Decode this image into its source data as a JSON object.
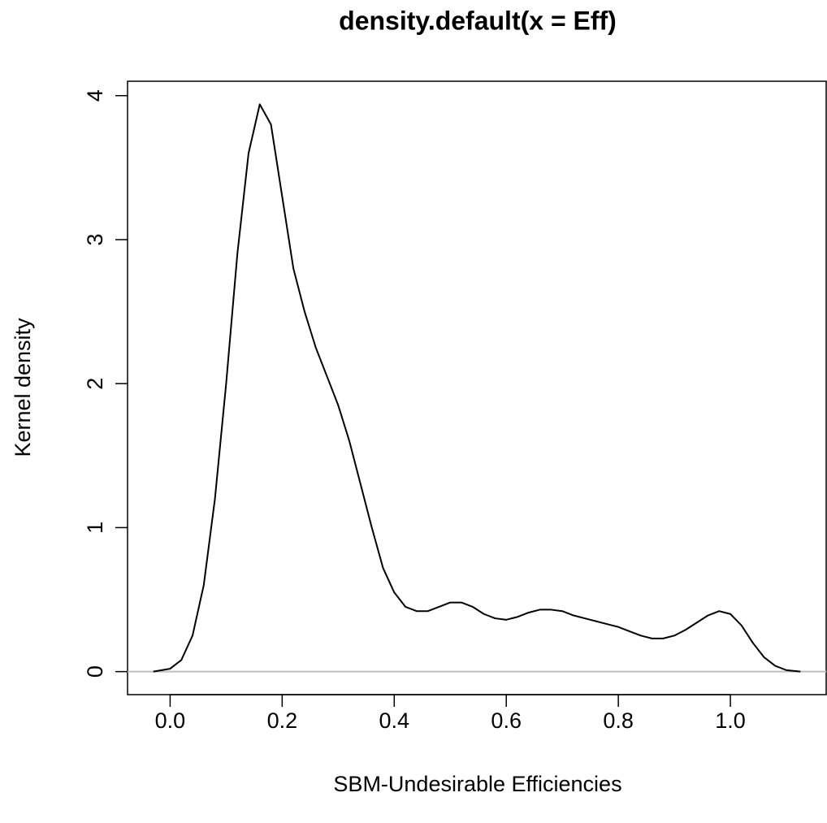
{
  "chart_data": {
    "type": "line",
    "title": "density.default(x = Eff)",
    "x_label": "SBM-Undesirable Efficiencies",
    "y_label": "Kernel density",
    "x": [
      -0.03,
      0.0,
      0.02,
      0.04,
      0.06,
      0.08,
      0.1,
      0.12,
      0.14,
      0.16,
      0.18,
      0.2,
      0.22,
      0.24,
      0.26,
      0.28,
      0.3,
      0.32,
      0.34,
      0.36,
      0.38,
      0.4,
      0.42,
      0.44,
      0.46,
      0.48,
      0.5,
      0.52,
      0.54,
      0.56,
      0.58,
      0.6,
      0.62,
      0.64,
      0.66,
      0.68,
      0.7,
      0.72,
      0.74,
      0.76,
      0.78,
      0.8,
      0.82,
      0.84,
      0.86,
      0.88,
      0.9,
      0.92,
      0.94,
      0.96,
      0.98,
      1.0,
      1.02,
      1.04,
      1.06,
      1.08,
      1.1,
      1.125
    ],
    "series": [
      {
        "color": "#000000",
        "values": [
          0,
          0.02,
          0.08,
          0.25,
          0.6,
          1.2,
          2.0,
          2.9,
          3.6,
          3.94,
          3.8,
          3.3,
          2.8,
          2.5,
          2.25,
          2.05,
          1.85,
          1.6,
          1.3,
          1.0,
          0.72,
          0.55,
          0.45,
          0.42,
          0.42,
          0.45,
          0.48,
          0.48,
          0.45,
          0.4,
          0.37,
          0.36,
          0.38,
          0.41,
          0.43,
          0.43,
          0.42,
          0.39,
          0.37,
          0.35,
          0.33,
          0.31,
          0.28,
          0.25,
          0.23,
          0.23,
          0.25,
          0.29,
          0.34,
          0.39,
          0.42,
          0.4,
          0.32,
          0.2,
          0.1,
          0.04,
          0.01,
          0
        ]
      }
    ],
    "xlim": [
      -0.076,
      1.171
    ],
    "ylim": [
      -0.16,
      4.1
    ],
    "xticks": [
      {
        "value": 0,
        "label": "0.0"
      },
      0.2,
      0.4,
      0.6,
      0.8,
      {
        "value": 1,
        "label": "1.0"
      }
    ],
    "yticks": [
      0,
      1,
      2,
      3,
      4
    ],
    "zero_line": true,
    "zero_line_color": "#bebebe"
  }
}
